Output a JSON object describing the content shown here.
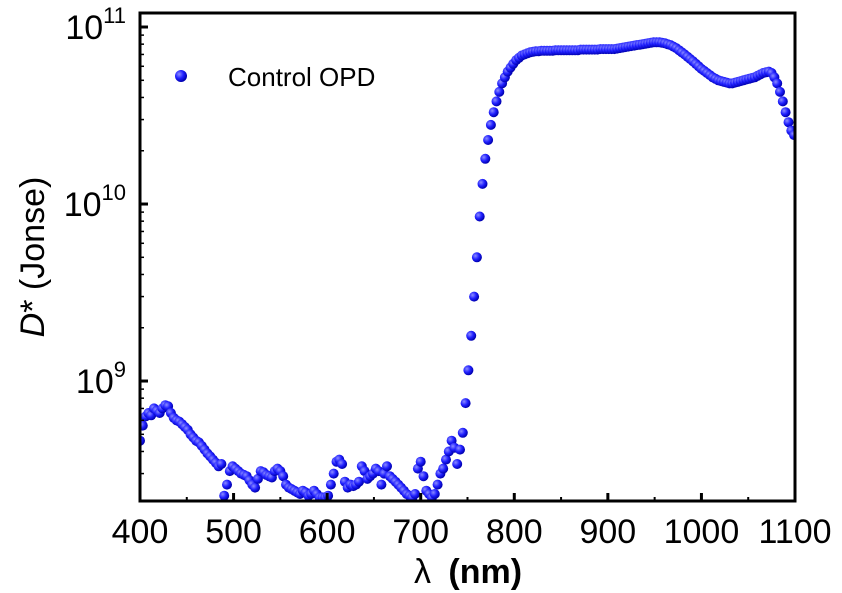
{
  "chart_data": {
    "type": "scatter",
    "x_axis": {
      "label_symbol": "λ",
      "label_unit": "(nm)",
      "range": [
        400,
        1100
      ],
      "ticks": [
        400,
        500,
        600,
        700,
        800,
        900,
        1000,
        1100
      ],
      "tick_labels": [
        "400",
        "500",
        "600",
        "700",
        "800",
        "900",
        "1000",
        "1100"
      ]
    },
    "y_axis": {
      "label_italic": "D",
      "label_rest": "* (Jonse)",
      "scale": "log",
      "range": [
        210000000.0,
        120000000000.0
      ],
      "ticks": [
        1000000000.0,
        10000000000.0,
        100000000000.0
      ],
      "tick_labels": [
        {
          "base": "10",
          "exp": "9"
        },
        {
          "base": "10",
          "exp": "10"
        },
        {
          "base": "10",
          "exp": "11"
        }
      ]
    },
    "grid": false,
    "legend": {
      "position": "top-left",
      "entries": [
        "Control OPD"
      ]
    },
    "series": [
      {
        "name": "Control OPD",
        "color": "#1a1aff",
        "marker": "circle",
        "points": [
          [
            400,
            460000000.0
          ],
          [
            403,
            560000000.0
          ],
          [
            406,
            630000000.0
          ],
          [
            409,
            660000000.0
          ],
          [
            412,
            640000000.0
          ],
          [
            415,
            700000000.0
          ],
          [
            418,
            680000000.0
          ],
          [
            421,
            660000000.0
          ],
          [
            424,
            700000000.0
          ],
          [
            427,
            730000000.0
          ],
          [
            430,
            720000000.0
          ],
          [
            433,
            660000000.0
          ],
          [
            436,
            620000000.0
          ],
          [
            439,
            600000000.0
          ],
          [
            442,
            590000000.0
          ],
          [
            445,
            570000000.0
          ],
          [
            448,
            550000000.0
          ],
          [
            451,
            530000000.0
          ],
          [
            454,
            500000000.0
          ],
          [
            457,
            480000000.0
          ],
          [
            460,
            460000000.0
          ],
          [
            463,
            450000000.0
          ],
          [
            466,
            430000000.0
          ],
          [
            469,
            410000000.0
          ],
          [
            472,
            390000000.0
          ],
          [
            475,
            375000000.0
          ],
          [
            478,
            360000000.0
          ],
          [
            481,
            345000000.0
          ],
          [
            484,
            330000000.0
          ],
          [
            487,
            340000000.0
          ],
          [
            490,
            225000000.0
          ],
          [
            493,
            260000000.0
          ],
          [
            496,
            310000000.0
          ],
          [
            499,
            330000000.0
          ],
          [
            502,
            320000000.0
          ],
          [
            505,
            310000000.0
          ],
          [
            508,
            300000000.0
          ],
          [
            511,
            295000000.0
          ],
          [
            514,
            290000000.0
          ],
          [
            517,
            275000000.0
          ],
          [
            520,
            260000000.0
          ],
          [
            523,
            250000000.0
          ],
          [
            526,
            280000000.0
          ],
          [
            529,
            310000000.0
          ],
          [
            532,
            305000000.0
          ],
          [
            535,
            295000000.0
          ],
          [
            538,
            290000000.0
          ],
          [
            541,
            285000000.0
          ],
          [
            544,
            310000000.0
          ],
          [
            547,
            320000000.0
          ],
          [
            550,
            310000000.0
          ],
          [
            553,
            290000000.0
          ],
          [
            556,
            260000000.0
          ],
          [
            559,
            250000000.0
          ],
          [
            562,
            245000000.0
          ],
          [
            565,
            240000000.0
          ],
          [
            568,
            235000000.0
          ],
          [
            571,
            230000000.0
          ],
          [
            574,
            240000000.0
          ],
          [
            577,
            235000000.0
          ],
          [
            580,
            225000000.0
          ],
          [
            583,
            230000000.0
          ],
          [
            586,
            240000000.0
          ],
          [
            589,
            230000000.0
          ],
          [
            592,
            220000000.0
          ],
          [
            595,
            220000000.0
          ],
          [
            598,
            220000000.0
          ],
          [
            601,
            225000000.0
          ],
          [
            604,
            260000000.0
          ],
          [
            607,
            300000000.0
          ],
          [
            610,
            350000000.0
          ],
          [
            613,
            360000000.0
          ],
          [
            616,
            340000000.0
          ],
          [
            619,
            270000000.0
          ],
          [
            622,
            250000000.0
          ],
          [
            625,
            260000000.0
          ],
          [
            628,
            255000000.0
          ],
          [
            631,
            260000000.0
          ],
          [
            634,
            270000000.0
          ],
          [
            637,
            330000000.0
          ],
          [
            640,
            310000000.0
          ],
          [
            643,
            280000000.0
          ],
          [
            646,
            290000000.0
          ],
          [
            649,
            300000000.0
          ],
          [
            652,
            320000000.0
          ],
          [
            655,
            310000000.0
          ],
          [
            658,
            260000000.0
          ],
          [
            661,
            300000000.0
          ],
          [
            664,
            330000000.0
          ],
          [
            667,
            290000000.0
          ],
          [
            670,
            280000000.0
          ],
          [
            673,
            270000000.0
          ],
          [
            676,
            260000000.0
          ],
          [
            679,
            250000000.0
          ],
          [
            682,
            240000000.0
          ],
          [
            685,
            230000000.0
          ],
          [
            688,
            225000000.0
          ],
          [
            691,
            220000000.0
          ],
          [
            694,
            230000000.0
          ],
          [
            697,
            320000000.0
          ],
          [
            700,
            350000000.0
          ],
          [
            703,
            290000000.0
          ],
          [
            706,
            240000000.0
          ],
          [
            709,
            230000000.0
          ],
          [
            712,
            220000000.0
          ],
          [
            715,
            230000000.0
          ],
          [
            718,
            260000000.0
          ],
          [
            721,
            300000000.0
          ],
          [
            724,
            320000000.0
          ],
          [
            727,
            360000000.0
          ],
          [
            730,
            400000000.0
          ],
          [
            733,
            460000000.0
          ],
          [
            736,
            420000000.0
          ],
          [
            739,
            340000000.0
          ],
          [
            742,
            410000000.0
          ],
          [
            745,
            510000000.0
          ],
          [
            748,
            750000000.0
          ],
          [
            751,
            1150000000.0
          ],
          [
            754,
            1800000000.0
          ],
          [
            757,
            3000000000.0
          ],
          [
            760,
            5000000000.0
          ],
          [
            763,
            8500000000.0
          ],
          [
            766,
            13000000000.0
          ],
          [
            769,
            18000000000.0
          ],
          [
            772,
            23000000000.0
          ],
          [
            775,
            28000000000.0
          ],
          [
            778,
            33000000000.0
          ],
          [
            781,
            38000000000.0
          ],
          [
            784,
            43000000000.0
          ],
          [
            787,
            48000000000.0
          ],
          [
            790,
            52000000000.0
          ],
          [
            793,
            56000000000.0
          ],
          [
            796,
            59000000000.0
          ],
          [
            799,
            62000000000.0
          ],
          [
            802,
            65000000000.0
          ],
          [
            805,
            67000000000.0
          ],
          [
            808,
            69000000000.0
          ],
          [
            811,
            70000000000.0
          ],
          [
            814,
            71000000000.0
          ],
          [
            817,
            72000000000.0
          ],
          [
            820,
            72500000000.0
          ],
          [
            823,
            73000000000.0
          ],
          [
            826,
            73000000000.0
          ],
          [
            829,
            73500000000.0
          ],
          [
            832,
            73500000000.0
          ],
          [
            835,
            73500000000.0
          ],
          [
            838,
            73500000000.0
          ],
          [
            841,
            73500000000.0
          ],
          [
            844,
            74000000000.0
          ],
          [
            847,
            74000000000.0
          ],
          [
            850,
            74000000000.0
          ],
          [
            853,
            74000000000.0
          ],
          [
            856,
            74000000000.0
          ],
          [
            859,
            74000000000.0
          ],
          [
            862,
            74000000000.0
          ],
          [
            865,
            74000000000.0
          ],
          [
            868,
            74000000000.0
          ],
          [
            871,
            74500000000.0
          ],
          [
            874,
            74500000000.0
          ],
          [
            877,
            74500000000.0
          ],
          [
            880,
            74500000000.0
          ],
          [
            883,
            74500000000.0
          ],
          [
            886,
            74500000000.0
          ],
          [
            889,
            74500000000.0
          ],
          [
            892,
            75000000000.0
          ],
          [
            895,
            75000000000.0
          ],
          [
            898,
            75000000000.0
          ],
          [
            901,
            75000000000.0
          ],
          [
            904,
            75000000000.0
          ],
          [
            907,
            75000000000.0
          ],
          [
            910,
            75500000000.0
          ],
          [
            913,
            76000000000.0
          ],
          [
            916,
            76500000000.0
          ],
          [
            919,
            77000000000.0
          ],
          [
            922,
            77500000000.0
          ],
          [
            925,
            78000000000.0
          ],
          [
            928,
            78500000000.0
          ],
          [
            931,
            79000000000.0
          ],
          [
            934,
            79500000000.0
          ],
          [
            937,
            80000000000.0
          ],
          [
            940,
            80500000000.0
          ],
          [
            943,
            81000000000.0
          ],
          [
            946,
            81500000000.0
          ],
          [
            949,
            82000000000.0
          ],
          [
            952,
            82000000000.0
          ],
          [
            955,
            82000000000.0
          ],
          [
            958,
            81500000000.0
          ],
          [
            961,
            81000000000.0
          ],
          [
            964,
            80000000000.0
          ],
          [
            967,
            79000000000.0
          ],
          [
            970,
            77500000000.0
          ],
          [
            973,
            76000000000.0
          ],
          [
            976,
            74000000000.0
          ],
          [
            979,
            72000000000.0
          ],
          [
            982,
            70000000000.0
          ],
          [
            985,
            68000000000.0
          ],
          [
            988,
            66000000000.0
          ],
          [
            991,
            64000000000.0
          ],
          [
            994,
            62000000000.0
          ],
          [
            997,
            60000000000.0
          ],
          [
            1000,
            58000000000.0
          ],
          [
            1003,
            56500000000.0
          ],
          [
            1006,
            55000000000.0
          ],
          [
            1009,
            53500000000.0
          ],
          [
            1012,
            52000000000.0
          ],
          [
            1015,
            51000000000.0
          ],
          [
            1018,
            50000000000.0
          ],
          [
            1021,
            49500000000.0
          ],
          [
            1024,
            49000000000.0
          ],
          [
            1027,
            48500000000.0
          ],
          [
            1030,
            48000000000.0
          ],
          [
            1033,
            48000000000.0
          ],
          [
            1036,
            48500000000.0
          ],
          [
            1039,
            49000000000.0
          ],
          [
            1042,
            49500000000.0
          ],
          [
            1045,
            50000000000.0
          ],
          [
            1048,
            50500000000.0
          ],
          [
            1051,
            51000000000.0
          ],
          [
            1054,
            51500000000.0
          ],
          [
            1057,
            52000000000.0
          ],
          [
            1060,
            53000000000.0
          ],
          [
            1063,
            54000000000.0
          ],
          [
            1066,
            55000000000.0
          ],
          [
            1069,
            55500000000.0
          ],
          [
            1072,
            56000000000.0
          ],
          [
            1075,
            55000000000.0
          ],
          [
            1078,
            52000000000.0
          ],
          [
            1081,
            48000000000.0
          ],
          [
            1084,
            43000000000.0
          ],
          [
            1087,
            38000000000.0
          ],
          [
            1090,
            33000000000.0
          ],
          [
            1093,
            29000000000.0
          ],
          [
            1096,
            26000000000.0
          ],
          [
            1099,
            24500000000.0
          ]
        ]
      }
    ]
  }
}
